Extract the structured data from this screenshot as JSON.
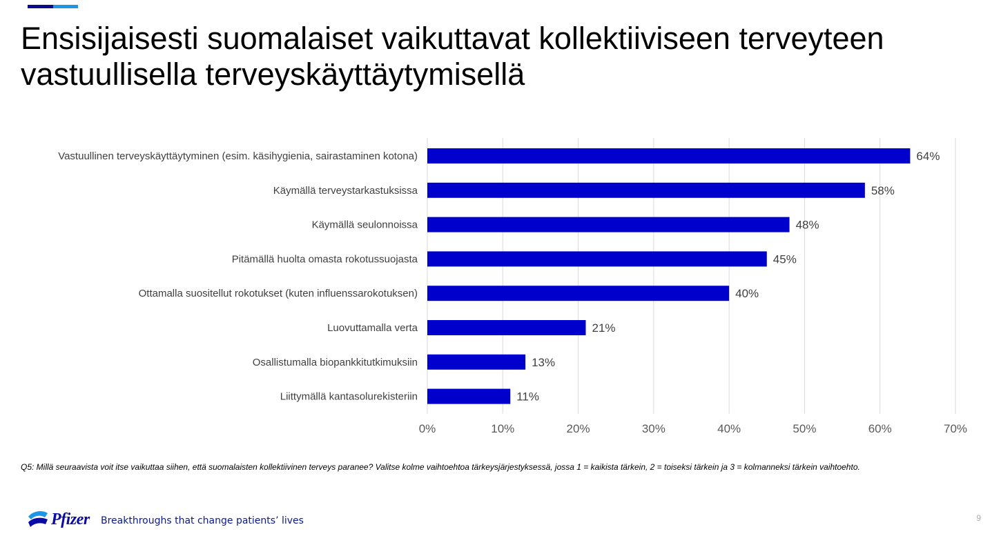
{
  "slide": {
    "title_line1": "Ensisijaisesti suomalaiset vaikuttavat kollektiiviseen terveyteen",
    "title_line2": "vastuullisella terveyskäyttäytymisellä",
    "footnote": "Q5: Millä seuraavista voit itse vaikuttaa siihen, että suomalaisten kollektiivinen terveys paranee? Valitse kolme vaihtoehtoa tärkeysjärjestyksessä, jossa 1 = kaikista tärkein, 2 = toiseksi tärkein ja 3 = kolmanneksi tärkein vaihtoehto.",
    "brand": "Pfizer",
    "tagline": "Breakthroughs that change patients’ lives",
    "page_number": "9"
  },
  "colors": {
    "bar": "#0000CC",
    "accent_dark": "#0a0a8c",
    "accent_light": "#1e96e6",
    "gridline": "#d9d9d9",
    "category_text": "#404040",
    "tick_text": "#595959",
    "value_text": "#404040"
  },
  "chart_data": {
    "type": "bar",
    "orientation": "horizontal",
    "categories": [
      "Vastuullinen terveyskäyttäytyminen (esim. käsihygienia, sairastaminen kotona)",
      "Käymällä terveystarkastuksissa",
      "Käymällä seulonnoissa",
      "Pitämällä huolta omasta rokotussuojasta",
      "Ottamalla suositellut rokotukset (kuten influenssarokotuksen)",
      "Luovuttamalla verta",
      "Osallistumalla biopankkitutkimuksiin",
      "Liittymällä kantasolurekisteriin"
    ],
    "values": [
      64,
      58,
      48,
      45,
      40,
      21,
      13,
      11
    ],
    "value_labels": [
      "64%",
      "58%",
      "48%",
      "45%",
      "40%",
      "21%",
      "13%",
      "11%"
    ],
    "xlim": [
      0,
      70
    ],
    "xticks": [
      0,
      10,
      20,
      30,
      40,
      50,
      60,
      70
    ],
    "xtick_labels": [
      "0%",
      "10%",
      "20%",
      "30%",
      "40%",
      "50%",
      "60%",
      "70%"
    ],
    "grid": "vertical",
    "legend": "none"
  }
}
